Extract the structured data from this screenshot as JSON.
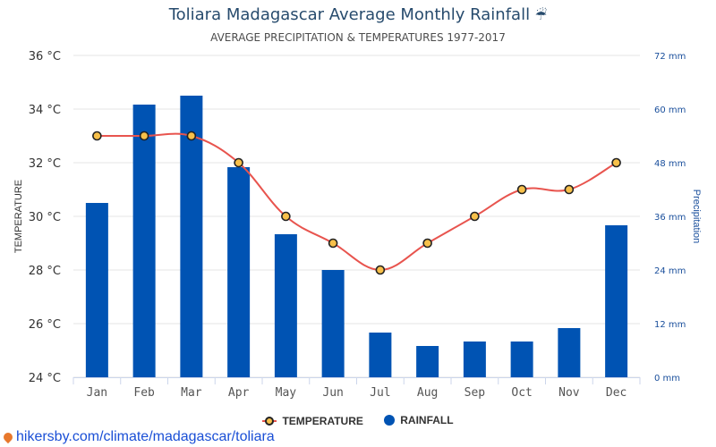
{
  "title": "Toliara Madagascar Average Monthly Rainfall",
  "title_icon": "umbrella-icon",
  "subtitle": "AVERAGE PRECIPITATION & TEMPERATURES 1977-2017",
  "source": "hikersby.com/climate/madagascar/toliara",
  "legend": {
    "temperature": "TEMPERATURE",
    "rainfall": "RAINFALL"
  },
  "colors": {
    "bars": "#0053b3",
    "line": "#e8544e",
    "marker_fill": "#f7c04a",
    "marker_stroke": "#222222",
    "title": "#274b6d",
    "right_axis": "#1a4f9c"
  },
  "chart_data": {
    "type": "bar",
    "categories": [
      "Jan",
      "Feb",
      "Mar",
      "Apr",
      "May",
      "Jun",
      "Jul",
      "Aug",
      "Sep",
      "Oct",
      "Nov",
      "Dec"
    ],
    "series": [
      {
        "name": "RAINFALL",
        "type": "bar",
        "axis": "right",
        "values": [
          39,
          61,
          63,
          47,
          32,
          24,
          10,
          7,
          8,
          8,
          11,
          34
        ]
      },
      {
        "name": "TEMPERATURE",
        "type": "line",
        "axis": "left",
        "values": [
          33,
          33,
          33,
          32,
          30,
          29,
          28,
          29,
          30,
          31,
          31,
          32
        ]
      }
    ],
    "ylabel": "TEMPERATURE",
    "ylabel_right": "Precipitation",
    "ylim": [
      24,
      36
    ],
    "ylim_right": [
      0,
      72
    ],
    "yticks": [
      "24 °C",
      "26 °C",
      "28 °C",
      "30 °C",
      "32 °C",
      "34 °C",
      "36 °C"
    ],
    "yticks_right": [
      "0 mm",
      "12 mm",
      "24 mm",
      "36 mm",
      "48 mm",
      "60 mm",
      "72 mm"
    ],
    "grid": true,
    "legend_position": "bottom"
  }
}
